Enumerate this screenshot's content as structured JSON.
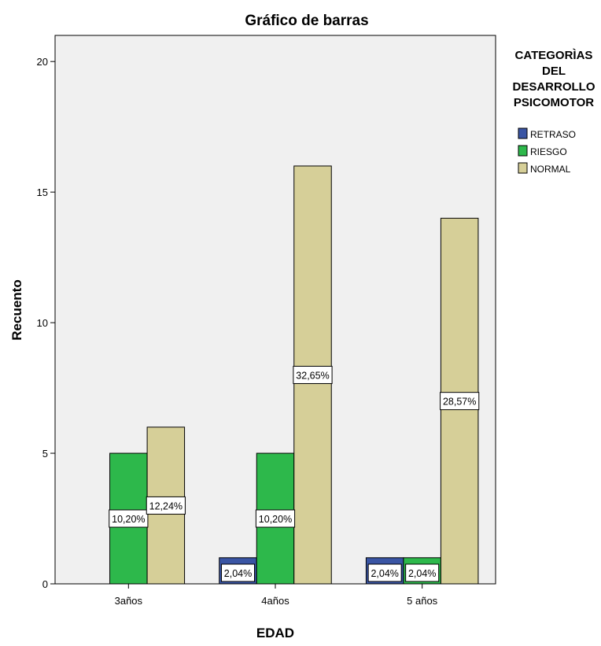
{
  "chart_data": {
    "type": "bar",
    "title": "Gráfico de barras",
    "xlabel": "EDAD",
    "ylabel": "Recuento",
    "categories": [
      "3años",
      "4años",
      "5 años"
    ],
    "ylim": [
      0,
      21
    ],
    "yticks": [
      0,
      5,
      10,
      15,
      20
    ],
    "legend": {
      "title_lines": [
        "CATEGORÌAS",
        "DEL",
        "DESARROLLO",
        "PSICOMOTOR"
      ],
      "placement": "right"
    },
    "series": [
      {
        "name": "RETRASO",
        "color": "#3a55a4",
        "values": [
          0,
          1,
          1
        ],
        "labels": [
          "",
          "2,04%",
          "2,04%"
        ]
      },
      {
        "name": "RIESGO",
        "color": "#2db84b",
        "values": [
          5,
          5,
          1
        ],
        "labels": [
          "10,20%",
          "10,20%",
          "2,04%"
        ]
      },
      {
        "name": "NORMAL",
        "color": "#d6cf98",
        "values": [
          6,
          16,
          14
        ],
        "labels": [
          "12,24%",
          "32,65%",
          "28,57%"
        ]
      }
    ],
    "background": "#f0f0f0",
    "grid": false
  }
}
